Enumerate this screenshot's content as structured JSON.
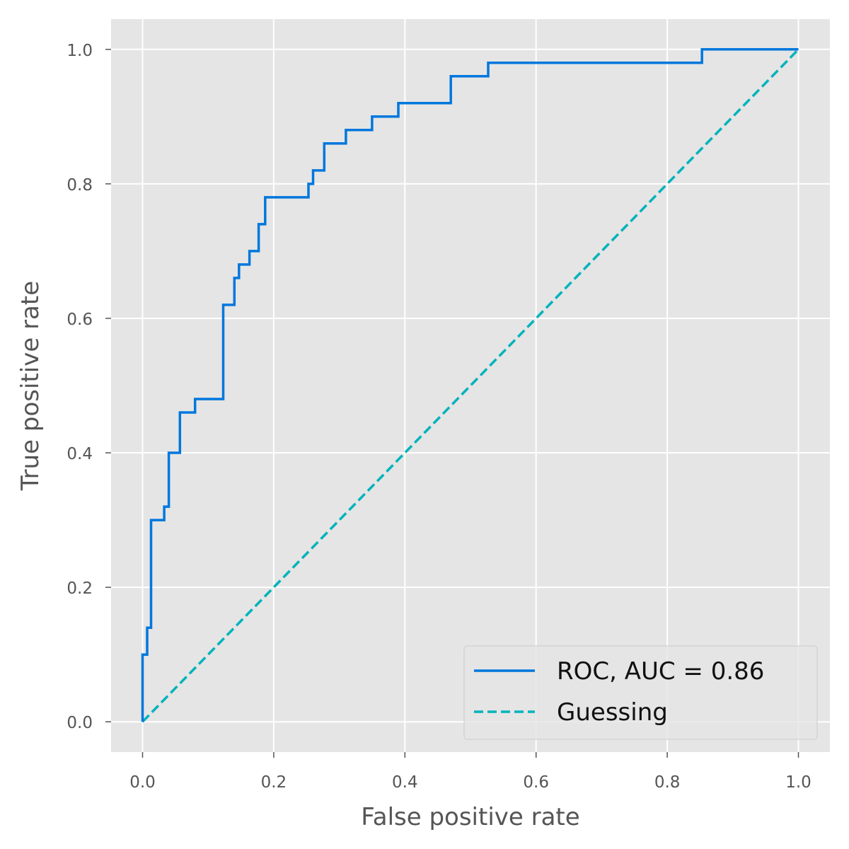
{
  "chart_data": {
    "type": "line",
    "xlabel": "False positive rate",
    "ylabel": "True positive rate",
    "xlim": [
      -0.048,
      1.048
    ],
    "ylim": [
      -0.045,
      1.045
    ],
    "xticks": [
      0.0,
      0.2,
      0.4,
      0.6,
      0.8,
      1.0
    ],
    "xtick_labels": [
      "0.0",
      "0.2",
      "0.4",
      "0.6",
      "0.8",
      "1.0"
    ],
    "yticks": [
      0.0,
      0.2,
      0.4,
      0.6,
      0.8,
      1.0
    ],
    "ytick_labels": [
      "0.0",
      "0.2",
      "0.4",
      "0.6",
      "0.8",
      "1.0"
    ],
    "grid": true,
    "legend_position": "bottom-right",
    "colors": {
      "plot_background": "#e5e5e5",
      "grid": "#ffffff",
      "roc": "#0077dd",
      "guess": "#00b3bb"
    },
    "series": [
      {
        "name": "ROC, AUC = 0.86",
        "style": "solid",
        "color_key": "roc",
        "x": [
          0.0,
          0.0,
          0.007,
          0.007,
          0.013,
          0.013,
          0.017,
          0.017,
          0.033,
          0.033,
          0.04,
          0.04,
          0.057,
          0.057,
          0.08,
          0.08,
          0.123,
          0.123,
          0.14,
          0.14,
          0.147,
          0.147,
          0.163,
          0.163,
          0.177,
          0.177,
          0.187,
          0.187,
          0.253,
          0.253,
          0.26,
          0.26,
          0.277,
          0.277,
          0.31,
          0.31,
          0.35,
          0.35,
          0.39,
          0.39,
          0.47,
          0.47,
          0.527,
          0.527,
          0.853,
          0.853,
          1.0
        ],
        "y": [
          0.0,
          0.1,
          0.1,
          0.14,
          0.14,
          0.3,
          0.3,
          0.3,
          0.3,
          0.32,
          0.32,
          0.4,
          0.4,
          0.46,
          0.46,
          0.48,
          0.48,
          0.62,
          0.62,
          0.66,
          0.66,
          0.68,
          0.68,
          0.7,
          0.7,
          0.74,
          0.74,
          0.78,
          0.78,
          0.8,
          0.8,
          0.82,
          0.82,
          0.86,
          0.86,
          0.88,
          0.88,
          0.9,
          0.9,
          0.92,
          0.92,
          0.96,
          0.96,
          0.98,
          0.98,
          1.0,
          1.0
        ]
      },
      {
        "name": "Guessing",
        "style": "dashed",
        "color_key": "guess",
        "x": [
          0.0,
          1.0
        ],
        "y": [
          0.0,
          1.0
        ]
      }
    ]
  }
}
